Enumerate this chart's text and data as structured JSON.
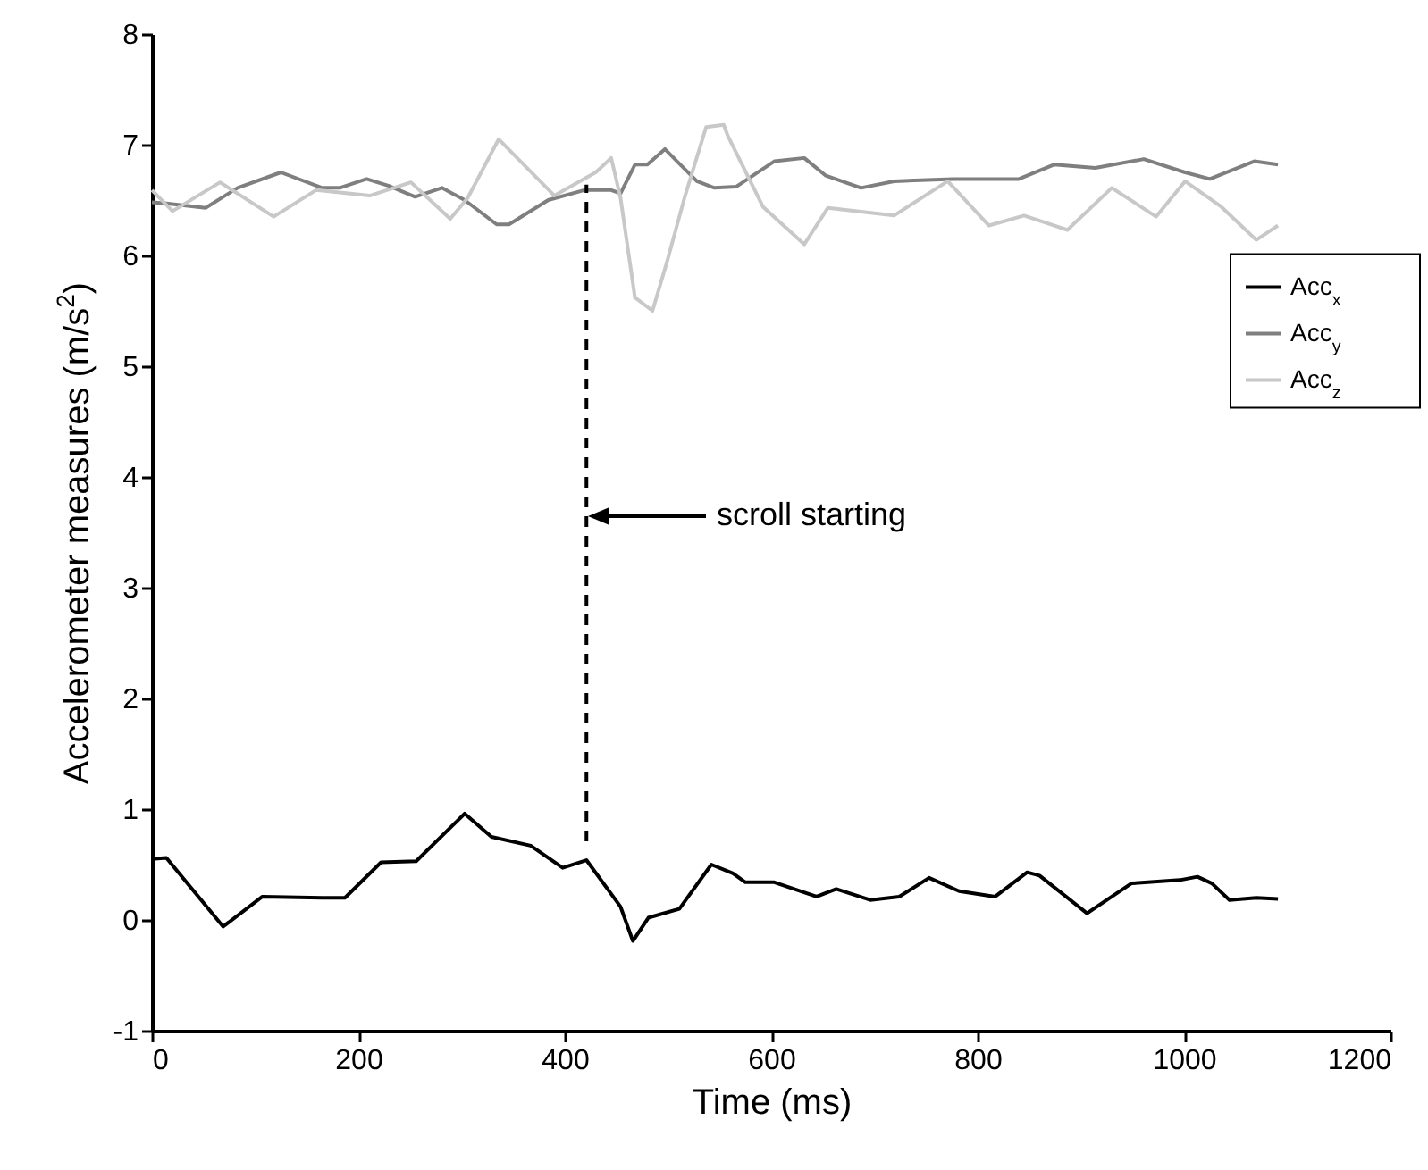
{
  "chart_data": {
    "type": "line",
    "xlabel": "Time (ms)",
    "ylabel": "Accelerometer measures (m/s$^{2}$)",
    "xlim": [
      0,
      1200
    ],
    "xticks": [
      0,
      200,
      400,
      600,
      800,
      {
        "value": 1000,
        "label": "1000"
      },
      {
        "value": 1200,
        "label": "1200"
      }
    ],
    "ylim": [
      -1,
      8
    ],
    "yticks": [
      -1,
      0,
      1,
      2,
      3,
      4,
      5,
      6,
      7,
      8
    ],
    "grid": false,
    "legend": "right",
    "line_style": "solid",
    "annotations": [
      "scroll starting"
    ],
    "series": [
      {
        "name": "Acc$_{x}$",
        "color": "#000000",
        "x": [
          0,
          14,
          69,
          107,
          165,
          187,
          222,
          256,
          303,
          329,
          367,
          398,
          421,
          454,
          466,
          481,
          511,
          542,
          563,
          575,
          603,
          644,
          663,
          696,
          724,
          753,
          782,
          817,
          848,
          860,
          906,
          949,
          996,
          1013,
          1027,
          1044,
          1070,
          1091
        ],
        "values": [
          0.55,
          0.56,
          -0.06,
          0.21,
          0.2,
          0.2,
          0.52,
          0.53,
          0.96,
          0.75,
          0.67,
          0.47,
          0.54,
          0.12,
          -0.19,
          0.02,
          0.1,
          0.5,
          0.42,
          0.34,
          0.34,
          0.21,
          0.28,
          0.18,
          0.21,
          0.38,
          0.26,
          0.21,
          0.43,
          0.4,
          0.06,
          0.33,
          0.36,
          0.39,
          0.33,
          0.18,
          0.2,
          0.19
        ]
      },
      {
        "name": "Acc$_{y}$",
        "color": "#7f7f7f",
        "x": [
          0,
          14,
          52,
          83,
          125,
          165,
          182,
          208,
          229,
          255,
          281,
          303,
          334,
          346,
          384,
          419,
          445,
          454,
          468,
          480,
          497,
          528,
          545,
          566,
          603,
          632,
          653,
          687,
          719,
          776,
          840,
          874,
          914,
          961,
          1001,
          1025,
          1068,
          1091
        ],
        "values": [
          6.48,
          6.47,
          6.43,
          6.61,
          6.75,
          6.61,
          6.61,
          6.69,
          6.63,
          6.53,
          6.61,
          6.5,
          6.28,
          6.28,
          6.5,
          6.59,
          6.59,
          6.56,
          6.82,
          6.82,
          6.96,
          6.67,
          6.61,
          6.62,
          6.85,
          6.88,
          6.72,
          6.61,
          6.67,
          6.69,
          6.69,
          6.82,
          6.79,
          6.87,
          6.75,
          6.69,
          6.85,
          6.82
        ]
      },
      {
        "name": "Acc$_{z}$",
        "color": "#c8c8c8",
        "x": [
          0,
          20,
          66,
          118,
          159,
          211,
          251,
          289,
          306,
          336,
          390,
          430,
          445,
          454,
          468,
          485,
          499,
          516,
          537,
          554,
          558,
          592,
          632,
          655,
          719,
          771,
          811,
          845,
          887,
          930,
          973,
          1001,
          1036,
          1070,
          1091
        ],
        "values": [
          6.59,
          6.4,
          6.66,
          6.35,
          6.59,
          6.54,
          6.66,
          6.33,
          6.52,
          7.05,
          6.54,
          6.75,
          6.88,
          6.52,
          5.62,
          5.5,
          5.94,
          6.52,
          7.16,
          7.18,
          7.08,
          6.44,
          6.1,
          6.43,
          6.36,
          6.67,
          6.27,
          6.36,
          6.23,
          6.61,
          6.35,
          6.67,
          6.44,
          6.14,
          6.27
        ]
      },
      {
        "type": "line",
        "line_style": "dashed",
        "color": "#000000",
        "x": [
          421,
          421
        ],
        "values": [
          0.71,
          6.64
        ]
      }
    ]
  }
}
